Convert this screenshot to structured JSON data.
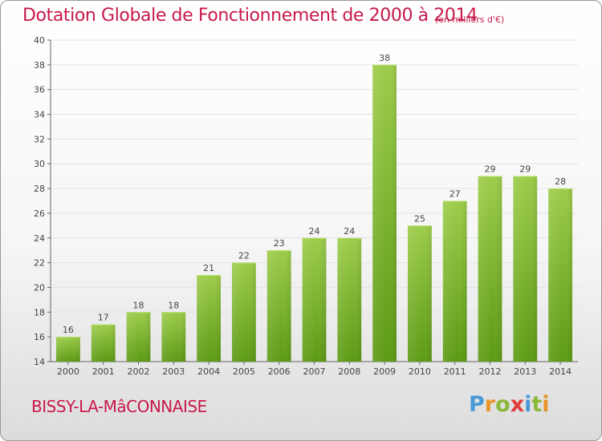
{
  "header": {
    "title": "Dotation Globale de Fonctionnement de 2000 à 2014",
    "subtitle": "(en milliers d'€)"
  },
  "footer": {
    "commune": "BISSY-LA-MâCONNAISE",
    "logo": "Proxiti"
  },
  "colors": {
    "title": "#c8194a",
    "bar_top": "#9ccc4a",
    "bar_bottom": "#5c9a14",
    "grid": "#e2e2e2"
  },
  "chart_data": {
    "type": "bar",
    "title": "Dotation Globale de Fonctionnement de 2000 à 2014",
    "subtitle": "(en milliers d'€)",
    "categories": [
      "2000",
      "2001",
      "2002",
      "2003",
      "2004",
      "2005",
      "2006",
      "2007",
      "2008",
      "2009",
      "2010",
      "2011",
      "2012",
      "2013",
      "2014"
    ],
    "values": [
      16,
      17,
      18,
      18,
      21,
      22,
      23,
      24,
      24,
      38,
      25,
      27,
      29,
      29,
      28
    ],
    "ylim": [
      14,
      40
    ],
    "yticks": [
      14,
      16,
      18,
      20,
      22,
      24,
      26,
      28,
      30,
      32,
      34,
      36,
      38,
      40
    ],
    "grid": true,
    "data_labels": true
  }
}
